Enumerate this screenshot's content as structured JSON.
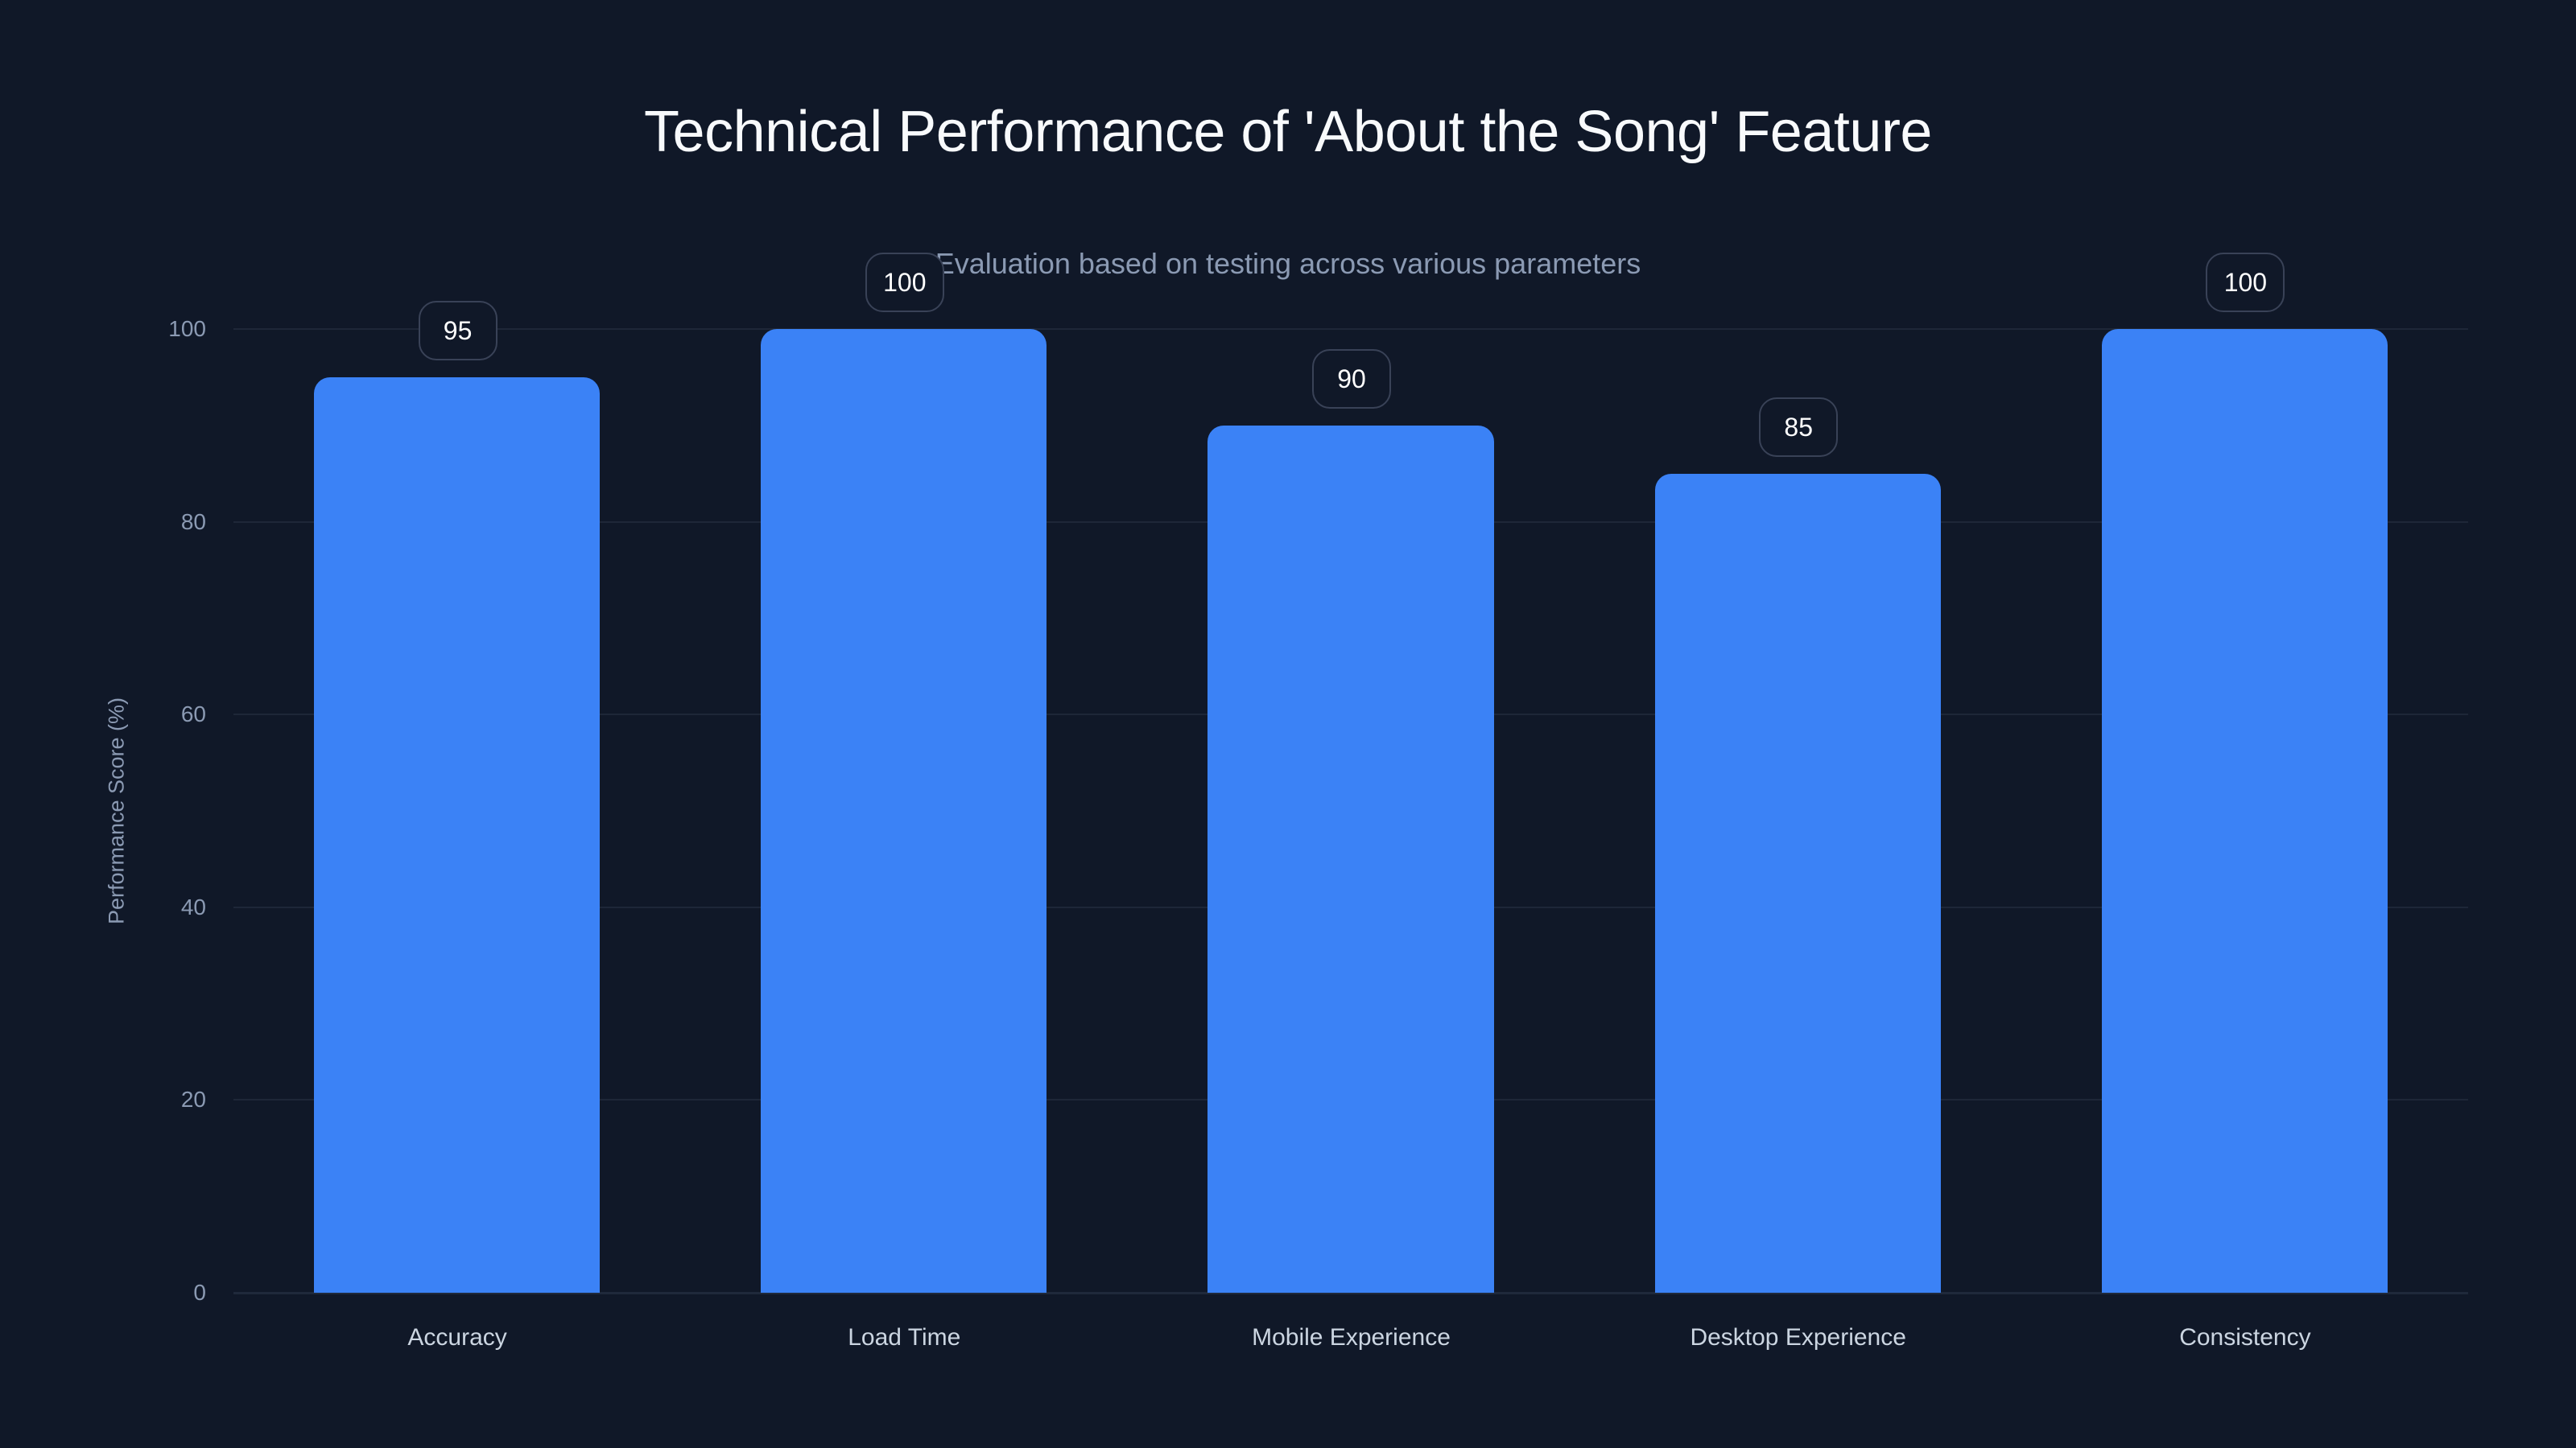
{
  "chart": {
    "title": "Technical Performance of 'About the Song' Feature",
    "subtitle": "Evaluation based on testing across various parameters",
    "ylabel": "Performance Score (%)",
    "bar_color": "#3b82f6",
    "background_color": "#101828"
  },
  "y_ticks": [
    "0",
    "20",
    "40",
    "60",
    "80",
    "100"
  ],
  "bars": [
    {
      "category": "Accuracy",
      "value": 95,
      "label": "95"
    },
    {
      "category": "Load Time",
      "value": 100,
      "label": "100"
    },
    {
      "category": "Mobile Experience",
      "value": 90,
      "label": "90"
    },
    {
      "category": "Desktop Experience",
      "value": 85,
      "label": "85"
    },
    {
      "category": "Consistency",
      "value": 100,
      "label": "100"
    }
  ],
  "chart_data": {
    "type": "bar",
    "title": "Technical Performance of 'About the Song' Feature",
    "subtitle": "Evaluation based on testing across various parameters",
    "xlabel": "",
    "ylabel": "Performance Score (%)",
    "categories": [
      "Accuracy",
      "Load Time",
      "Mobile Experience",
      "Desktop Experience",
      "Consistency"
    ],
    "values": [
      95,
      100,
      90,
      85,
      100
    ],
    "data_labels": [
      "95",
      "100",
      "90",
      "85",
      "100"
    ],
    "ylim": [
      0,
      100
    ],
    "yticks": [
      0,
      20,
      40,
      60,
      80,
      100
    ],
    "grid": true,
    "legend": null,
    "colors": [
      "#3b82f6"
    ]
  }
}
